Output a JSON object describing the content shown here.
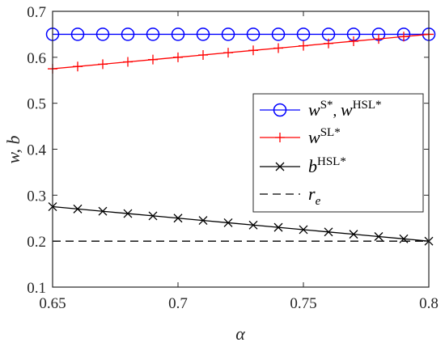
{
  "chart_data": {
    "type": "line",
    "xlabel": "α",
    "ylabel": "w, b",
    "xlim": [
      0.65,
      0.8
    ],
    "ylim": [
      0.1,
      0.7
    ],
    "xticks": [
      "0.65",
      "0.7",
      "0.75",
      "0.8"
    ],
    "yticks": [
      "0.1",
      "0.2",
      "0.3",
      "0.4",
      "0.5",
      "0.6",
      "0.7"
    ],
    "grid": false,
    "legend_position": "right-middle",
    "x": [
      0.65,
      0.66,
      0.67,
      0.68,
      0.69,
      0.7,
      0.71,
      0.72,
      0.73,
      0.74,
      0.75,
      0.76,
      0.77,
      0.78,
      0.79,
      0.8
    ],
    "series": [
      {
        "legend_main": "w",
        "legend_sup": "S*",
        "legend_sep": ", ",
        "legend_main2": "w",
        "legend_sup2": "HSL*",
        "color": "#0000ff",
        "marker": "circle",
        "dash": "solid",
        "values": [
          0.65,
          0.65,
          0.65,
          0.65,
          0.65,
          0.65,
          0.65,
          0.65,
          0.65,
          0.65,
          0.65,
          0.65,
          0.65,
          0.65,
          0.65,
          0.65
        ]
      },
      {
        "legend_main": "w",
        "legend_sup": "SL*",
        "color": "#ff0000",
        "marker": "plus",
        "dash": "solid",
        "values": [
          0.575,
          0.58,
          0.585,
          0.59,
          0.595,
          0.6,
          0.605,
          0.61,
          0.615,
          0.62,
          0.625,
          0.63,
          0.635,
          0.64,
          0.645,
          0.65
        ]
      },
      {
        "legend_main": "b",
        "legend_sup": "HSL*",
        "color": "#000000",
        "marker": "x",
        "dash": "solid",
        "values": [
          0.275,
          0.27,
          0.265,
          0.26,
          0.255,
          0.25,
          0.245,
          0.24,
          0.235,
          0.23,
          0.225,
          0.22,
          0.215,
          0.21,
          0.205,
          0.2
        ]
      },
      {
        "legend_main": "r",
        "legend_sub": "e",
        "color": "#000000",
        "marker": "none",
        "dash": "dashed",
        "values": [
          0.2,
          0.2,
          0.2,
          0.2,
          0.2,
          0.2,
          0.2,
          0.2,
          0.2,
          0.2,
          0.2,
          0.2,
          0.2,
          0.2,
          0.2,
          0.2
        ]
      }
    ]
  }
}
